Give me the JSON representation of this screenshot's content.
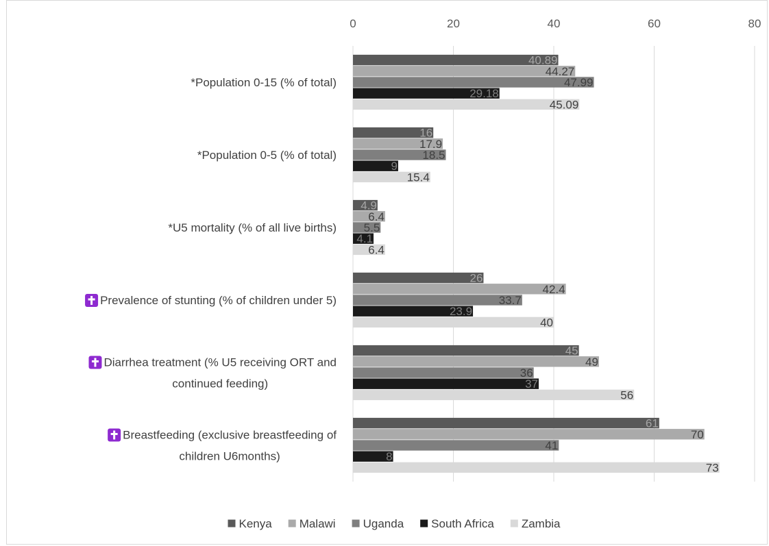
{
  "chart_data": {
    "type": "bar",
    "orientation": "horizontal",
    "title": "",
    "xlabel": "",
    "ylabel": "",
    "xlim": [
      0,
      80
    ],
    "ticks": [
      0,
      20,
      40,
      60,
      80
    ],
    "grid": true,
    "legend_position": "bottom",
    "categories": [
      {
        "lines": [
          "*Population 0-15 (% of total)"
        ],
        "marker": false
      },
      {
        "lines": [
          "*Population 0-5 (% of total)"
        ],
        "marker": false
      },
      {
        "lines": [
          "*U5 mortality (% of all live births)"
        ],
        "marker": false
      },
      {
        "lines": [
          "Prevalence of stunting (% of children under 5)"
        ],
        "marker": true
      },
      {
        "lines": [
          "Diarrhea treatment (% U5 receiving ORT and",
          "continued feeding)"
        ],
        "marker": true
      },
      {
        "lines": [
          "Breastfeeding (exclusive breastfeeding of",
          "children U6months)"
        ],
        "marker": true
      }
    ],
    "series": [
      {
        "name": "Kenya",
        "color": "#595959",
        "label_color": "#a6a6a6",
        "values": [
          40.89,
          16,
          4.9,
          26,
          45,
          61
        ]
      },
      {
        "name": "Malawi",
        "color": "#aaaaaa",
        "label_color": "#404040",
        "values": [
          44.27,
          17.9,
          6.4,
          42.4,
          49,
          70
        ]
      },
      {
        "name": "Uganda",
        "color": "#7f7f7f",
        "label_color": "#404040",
        "values": [
          47.99,
          18.5,
          5.5,
          33.7,
          36,
          41
        ]
      },
      {
        "name": "South Africa",
        "color": "#1a1a1a",
        "label_color": "#7f7f7f",
        "values": [
          29.18,
          9,
          4.1,
          23.9,
          37,
          8
        ]
      },
      {
        "name": "Zambia",
        "color": "#d9d9d9",
        "label_color": "#404040",
        "values": [
          45.09,
          15.4,
          6.4,
          40,
          56,
          73
        ]
      }
    ],
    "marker_icon": "latin-cross-icon"
  }
}
